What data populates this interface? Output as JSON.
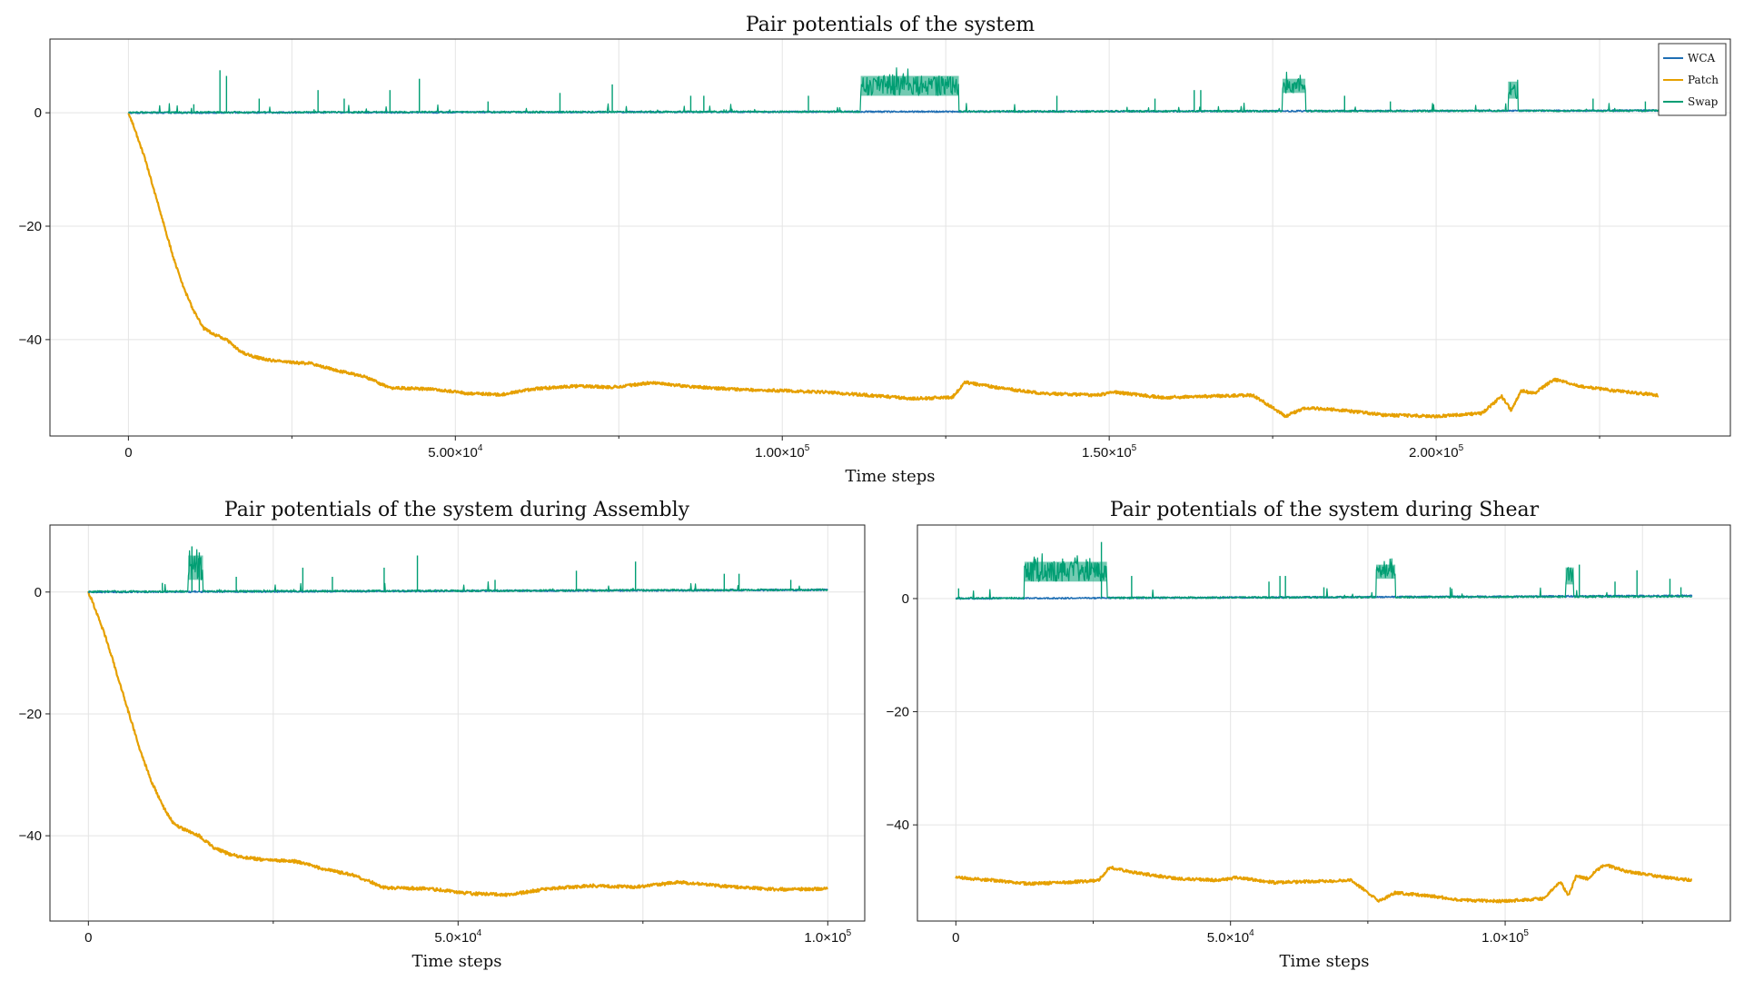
{
  "colors": {
    "WCA": "#1f6fb4",
    "Patch": "#e6a000",
    "Swap": "#009e73"
  },
  "chart_data": [
    {
      "id": "full",
      "type": "line",
      "title": "Pair potentials of the system",
      "xlabel": "Time steps",
      "ylabel": "",
      "xlim": [
        -12000,
        245000
      ],
      "ylim": [
        -57,
        13
      ],
      "xticks": [
        {
          "value": 0,
          "mant": "0",
          "exp": ""
        },
        {
          "value": 50000,
          "mant": "5.00×10",
          "exp": "4"
        },
        {
          "value": 100000,
          "mant": "1.00×10",
          "exp": "5"
        },
        {
          "value": 150000,
          "mant": "1.50×10",
          "exp": "5"
        },
        {
          "value": 200000,
          "mant": "2.00×10",
          "exp": "5"
        }
      ],
      "xminor": [
        25000,
        75000,
        125000,
        175000,
        225000
      ],
      "yticks": [
        {
          "value": 0,
          "label": "0"
        },
        {
          "value": -20,
          "label": "−20"
        },
        {
          "value": -40,
          "label": "−40"
        }
      ],
      "legend": {
        "position": "top-right",
        "entries": [
          "WCA",
          "Patch",
          "Swap"
        ]
      },
      "series": [
        {
          "name": "Patch",
          "x": [
            0,
            1000,
            2500,
            4000,
            5500,
            7000,
            8500,
            10000,
            11500,
            13000,
            15000,
            17000,
            19000,
            21000,
            24000,
            28000,
            32000,
            36000,
            40000,
            46000,
            52000,
            57000,
            62000,
            68000,
            74000,
            80000,
            86000,
            93000,
            100000,
            107000,
            113000,
            120000,
            126000,
            128000,
            133000,
            140000,
            148000,
            151000,
            158000,
            165000,
            172000,
            177000,
            180000,
            186000,
            192000,
            200000,
            207000,
            210000,
            211500,
            213000,
            215000,
            218000,
            222000,
            227000,
            234000
          ],
          "y": [
            0,
            -3,
            -8,
            -14,
            -20,
            -26,
            -31,
            -35,
            -38,
            -39,
            -40,
            -42,
            -43,
            -43.5,
            -44,
            -44.2,
            -45.5,
            -46.5,
            -48.5,
            -48.7,
            -49.5,
            -49.7,
            -48.7,
            -48.2,
            -48.4,
            -47.6,
            -48.3,
            -48.8,
            -49.0,
            -49.3,
            -49.8,
            -50.4,
            -50.2,
            -47.5,
            -48.5,
            -49.5,
            -49.8,
            -49.3,
            -50.2,
            -50.0,
            -49.8,
            -53.5,
            -52.0,
            -52.5,
            -53.3,
            -53.5,
            -53.0,
            -50.0,
            -52.5,
            -49.0,
            -49.5,
            -47.0,
            -48.2,
            -49.0,
            -49.8
          ],
          "values_note": null,
          "noise": 0.5
        },
        {
          "name": "WCA",
          "x": [
            0,
            234000
          ],
          "y": [
            0,
            0.4
          ],
          "noise": 0.25
        },
        {
          "name": "Swap",
          "x": [
            0,
            234000
          ],
          "y": [
            0,
            0.3
          ],
          "spikes": [
            [
              10000,
              1.5
            ],
            [
              14000,
              7.5
            ],
            [
              15000,
              6.5
            ],
            [
              20000,
              2.5
            ],
            [
              29000,
              4.0
            ],
            [
              33000,
              2.5
            ],
            [
              40000,
              4.0
            ],
            [
              44500,
              6.0
            ],
            [
              55000,
              2.0
            ],
            [
              66000,
              3.5
            ],
            [
              74000,
              5.0
            ],
            [
              86000,
              3.0
            ],
            [
              88000,
              3.0
            ],
            [
              104000,
              3.0
            ],
            [
              142000,
              3.0
            ],
            [
              157000,
              2.5
            ],
            [
              163000,
              4.0
            ],
            [
              164000,
              4.0
            ],
            [
              186000,
              3.0
            ],
            [
              193000,
              2.0
            ],
            [
              224000,
              2.5
            ],
            [
              232000,
              2.0
            ]
          ],
          "bands": [
            [
              112000,
              127000,
              3.0,
              6.5
            ],
            [
              176500,
              180000,
              3.5,
              6.0
            ],
            [
              211000,
              212500,
              2.5,
              5.5
            ]
          ]
        }
      ]
    },
    {
      "id": "assembly",
      "type": "line",
      "title": "Pair potentials of the system during Assembly",
      "xlabel": "Time steps",
      "ylabel": "",
      "xlim": [
        -5200,
        105000
      ],
      "ylim": [
        -54,
        11
      ],
      "xticks": [
        {
          "value": 0,
          "mant": "0",
          "exp": ""
        },
        {
          "value": 50000,
          "mant": "5.0×10",
          "exp": "4"
        },
        {
          "value": 100000,
          "mant": "1.0×10",
          "exp": "5"
        }
      ],
      "xminor": [
        25000,
        75000
      ],
      "yticks": [
        {
          "value": 0,
          "label": "0"
        },
        {
          "value": -20,
          "label": "−20"
        },
        {
          "value": -40,
          "label": "−40"
        }
      ],
      "series": [
        {
          "name": "Patch",
          "x": [
            0,
            1000,
            2500,
            4000,
            5500,
            7000,
            8500,
            10000,
            11500,
            13000,
            15000,
            17000,
            19000,
            21000,
            24000,
            28000,
            32000,
            36000,
            40000,
            46000,
            52000,
            57000,
            62000,
            68000,
            74000,
            80000,
            86000,
            93000,
            100000
          ],
          "y": [
            0,
            -3,
            -8,
            -14,
            -20,
            -26,
            -31,
            -35,
            -38,
            -39,
            -40,
            -42,
            -43,
            -43.5,
            -44,
            -44.2,
            -45.5,
            -46.5,
            -48.5,
            -48.7,
            -49.5,
            -49.7,
            -48.7,
            -48.2,
            -48.4,
            -47.6,
            -48.3,
            -48.8,
            -48.7
          ],
          "noise": 0.5
        },
        {
          "name": "WCA",
          "x": [
            0,
            100000
          ],
          "y": [
            0,
            0.35
          ],
          "noise": 0.25
        },
        {
          "name": "Swap",
          "x": [
            0,
            100000
          ],
          "y": [
            0,
            0.3
          ],
          "spikes": [
            [
              10000,
              1.5
            ],
            [
              14000,
              7.5
            ],
            [
              15000,
              6.5
            ],
            [
              20000,
              2.5
            ],
            [
              29000,
              4.0
            ],
            [
              33000,
              2.5
            ],
            [
              40000,
              4.0
            ],
            [
              44500,
              6.0
            ],
            [
              55000,
              2.0
            ],
            [
              66000,
              3.5
            ],
            [
              74000,
              5.0
            ],
            [
              86000,
              3.0
            ],
            [
              88000,
              3.0
            ],
            [
              95000,
              2.0
            ]
          ],
          "bands": [
            [
              13500,
              15500,
              2.0,
              6.0
            ]
          ]
        }
      ]
    },
    {
      "id": "shear",
      "type": "line",
      "title": "Pair potentials of the system during Shear",
      "xlabel": "Time steps",
      "ylabel": "",
      "xlim": [
        -7000,
        141000
      ],
      "ylim": [
        -57,
        13
      ],
      "xticks": [
        {
          "value": 0,
          "mant": "0",
          "exp": ""
        },
        {
          "value": 50000,
          "mant": "5.0×10",
          "exp": "4"
        },
        {
          "value": 100000,
          "mant": "1.0×10",
          "exp": "5"
        }
      ],
      "xminor": [
        25000,
        75000,
        125000
      ],
      "yticks": [
        {
          "value": 0,
          "label": "0"
        },
        {
          "value": -20,
          "label": "−20"
        },
        {
          "value": -40,
          "label": "−40"
        }
      ],
      "series": [
        {
          "name": "Patch",
          "x": [
            0,
            7000,
            13000,
            20000,
            26000,
            28000,
            33000,
            40000,
            48000,
            51000,
            58000,
            65000,
            72000,
            77000,
            80000,
            86000,
            92000,
            100000,
            107000,
            110000,
            111500,
            113000,
            115000,
            118000,
            122000,
            127000,
            134000
          ],
          "y": [
            -49.3,
            -49.8,
            -50.4,
            -50.2,
            -49.8,
            -47.5,
            -48.5,
            -49.5,
            -49.8,
            -49.3,
            -50.2,
            -50.0,
            -49.8,
            -53.5,
            -52.0,
            -52.5,
            -53.3,
            -53.5,
            -53.0,
            -50.0,
            -52.5,
            -49.0,
            -49.5,
            -47.0,
            -48.2,
            -49.0,
            -49.8
          ],
          "noise": 0.5
        },
        {
          "name": "WCA",
          "x": [
            0,
            134000
          ],
          "y": [
            0,
            0.5
          ],
          "noise": 0.25
        },
        {
          "name": "Swap",
          "x": [
            0,
            134000
          ],
          "y": [
            0,
            0.3
          ],
          "spikes": [
            [
              500,
              1.8
            ],
            [
              26500,
              10.0
            ],
            [
              32000,
              4.0
            ],
            [
              57000,
              3.0
            ],
            [
              59000,
              4.0
            ],
            [
              60000,
              4.0
            ],
            [
              67000,
              2.0
            ],
            [
              90000,
              2.0
            ],
            [
              113500,
              6.0
            ],
            [
              120000,
              3.0
            ],
            [
              124000,
              5.0
            ],
            [
              130000,
              3.5
            ],
            [
              132000,
              2.0
            ]
          ],
          "bands": [
            [
              12500,
              27500,
              3.0,
              6.5
            ],
            [
              76500,
              80000,
              3.5,
              6.0
            ],
            [
              111000,
              112500,
              2.5,
              5.5
            ]
          ]
        }
      ]
    }
  ]
}
